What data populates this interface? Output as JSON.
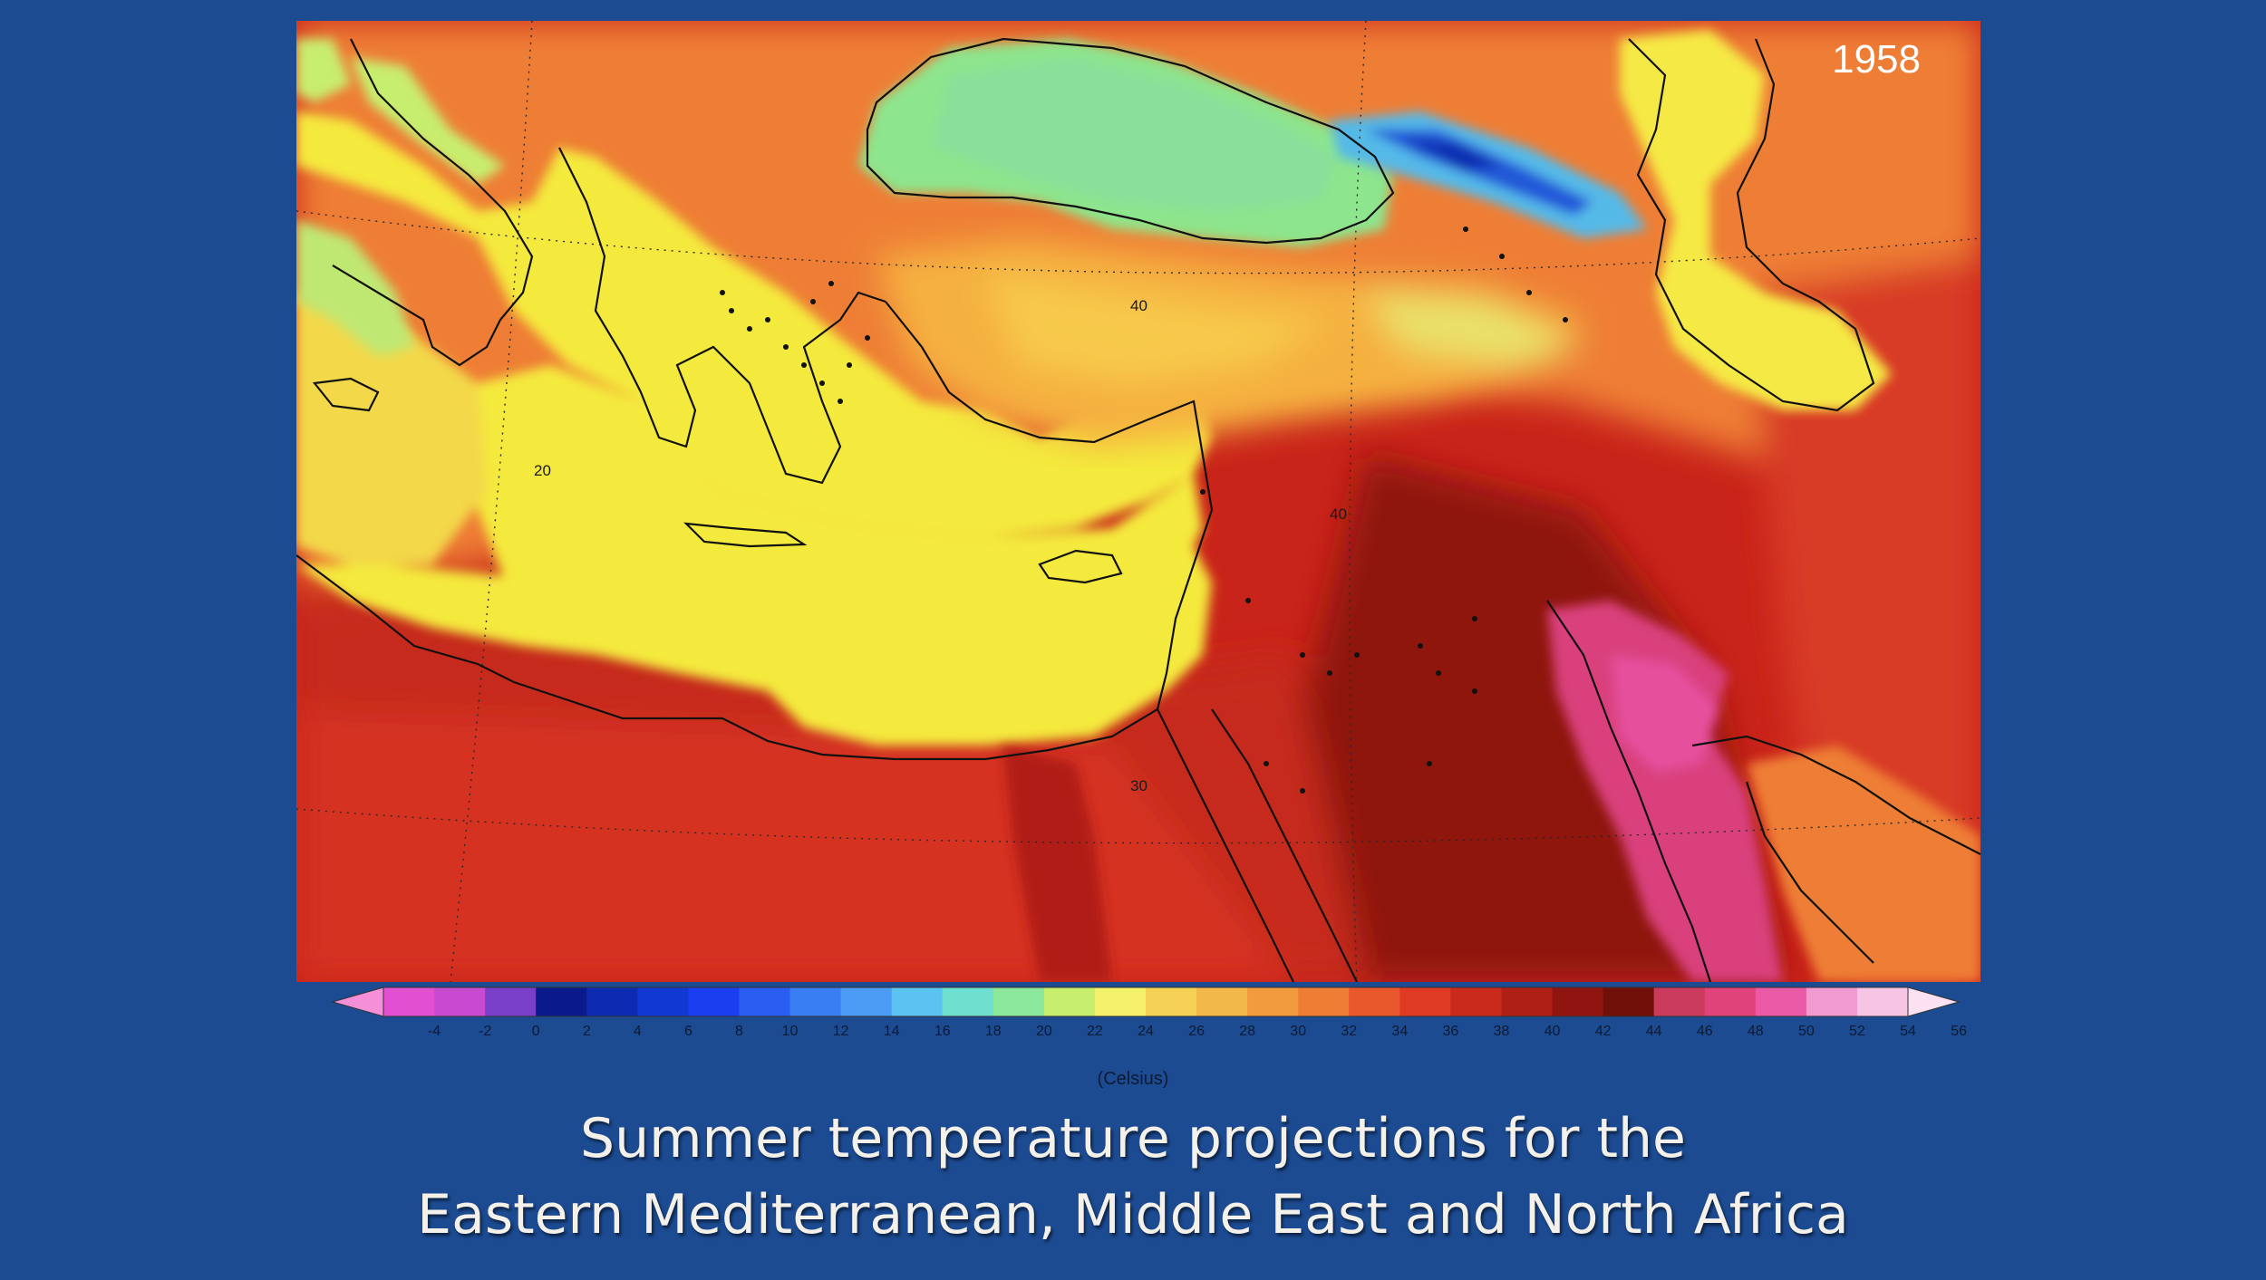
{
  "map": {
    "year": "1958",
    "grid_labels": [
      "20",
      "40",
      "40",
      "30"
    ]
  },
  "legend": {
    "ticks": [
      "-4",
      "-2",
      "0",
      "2",
      "4",
      "6",
      "8",
      "10",
      "12",
      "14",
      "16",
      "18",
      "20",
      "22",
      "24",
      "26",
      "28",
      "30",
      "32",
      "34",
      "36",
      "38",
      "40",
      "42",
      "44",
      "46",
      "48",
      "50",
      "52",
      "54",
      "56"
    ],
    "units": "(Celsius)",
    "colors": [
      "#f58fd8",
      "#e24fd0",
      "#c84ad0",
      "#7a3fc8",
      "#0a1a8c",
      "#0c2bb0",
      "#1238d4",
      "#1b3ff0",
      "#2a5ef2",
      "#3a7ef4",
      "#4a9cf4",
      "#5bc2f2",
      "#6fe0d0",
      "#8be79a",
      "#c8ee6e",
      "#f4f16a",
      "#f4d256",
      "#f3b84a",
      "#f19a3e",
      "#ee7e34",
      "#e9572c",
      "#de3a24",
      "#c92a1c",
      "#b01f16",
      "#901510",
      "#701008",
      "#c93a5c",
      "#e0427a",
      "#ea5aa6",
      "#f09ad0",
      "#f6c5e4",
      "#fbe1f1"
    ]
  },
  "caption": {
    "line1": "Summer temperature projections for the",
    "line2": "Eastern Mediterranean, Middle East and North Africa"
  }
}
